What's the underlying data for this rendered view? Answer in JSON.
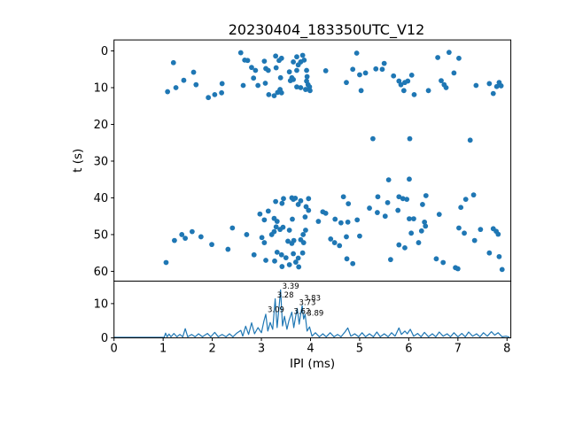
{
  "figure": {
    "title": "20230404_183350UTC_V12",
    "background": "#ffffff",
    "axis_color": "#000000",
    "accent_color": "#1f77b4"
  },
  "chart_data": [
    {
      "type": "scatter",
      "title": "20230404_183350UTC_V12",
      "xlabel": "IPI (ms)",
      "ylabel": "t (s)",
      "xlim": [
        0,
        8.08
      ],
      "ylim": [
        62.6,
        -3.0
      ],
      "y_inverted": true,
      "x_ticks": [
        0,
        1,
        2,
        3,
        4,
        5,
        6,
        7,
        8
      ],
      "x_tick_labels_visible": false,
      "y_ticks": [
        0,
        10,
        20,
        30,
        40,
        50,
        60
      ],
      "grid": false,
      "legend": "none",
      "marker_color": "#1f77b4",
      "points": [
        [
          1.09,
          11.1
        ],
        [
          1.21,
          3.2
        ],
        [
          1.26,
          10.0
        ],
        [
          1.42,
          8.0
        ],
        [
          1.62,
          5.8
        ],
        [
          1.67,
          9.2
        ],
        [
          1.92,
          12.7
        ],
        [
          2.05,
          11.9
        ],
        [
          2.19,
          11.4
        ],
        [
          2.2,
          8.9
        ],
        [
          2.58,
          0.5
        ],
        [
          2.63,
          9.4
        ],
        [
          2.66,
          2.5
        ],
        [
          2.72,
          2.6
        ],
        [
          2.8,
          4.5
        ],
        [
          2.84,
          7.4
        ],
        [
          2.88,
          5.3
        ],
        [
          2.93,
          9.4
        ],
        [
          3.06,
          2.8
        ],
        [
          3.08,
          8.8
        ],
        [
          3.09,
          4.8
        ],
        [
          3.14,
          5.3
        ],
        [
          3.15,
          11.9
        ],
        [
          3.26,
          12.2
        ],
        [
          3.29,
          1.4
        ],
        [
          3.3,
          4.6
        ],
        [
          3.33,
          11.3
        ],
        [
          3.36,
          2.6
        ],
        [
          3.38,
          10.5
        ],
        [
          3.39,
          7.3
        ],
        [
          3.41,
          2.0
        ],
        [
          3.41,
          11.4
        ],
        [
          3.57,
          5.7
        ],
        [
          3.59,
          8.1
        ],
        [
          3.62,
          7.3
        ],
        [
          3.65,
          3.0
        ],
        [
          3.65,
          7.8
        ],
        [
          3.72,
          1.6
        ],
        [
          3.72,
          5.3
        ],
        [
          3.72,
          9.8
        ],
        [
          3.75,
          3.8
        ],
        [
          3.8,
          3.0
        ],
        [
          3.8,
          10.0
        ],
        [
          3.84,
          1.2
        ],
        [
          3.87,
          2.5
        ],
        [
          3.9,
          10.5
        ],
        [
          3.92,
          5.3
        ],
        [
          3.92,
          8.2
        ],
        [
          3.93,
          7.0
        ],
        [
          3.95,
          9.2
        ],
        [
          3.98,
          9.8
        ],
        [
          3.99,
          10.8
        ],
        [
          4.31,
          5.4
        ],
        [
          4.73,
          8.6
        ],
        [
          4.86,
          5.0
        ],
        [
          4.94,
          0.6
        ],
        [
          5.0,
          6.5
        ],
        [
          5.03,
          10.8
        ],
        [
          5.12,
          6.0
        ],
        [
          5.33,
          4.9
        ],
        [
          5.46,
          5.0
        ],
        [
          5.5,
          3.4
        ],
        [
          5.69,
          6.8
        ],
        [
          5.8,
          8.2
        ],
        [
          5.84,
          9.2
        ],
        [
          5.9,
          10.8
        ],
        [
          5.92,
          8.6
        ],
        [
          5.98,
          8.2
        ],
        [
          6.06,
          6.6
        ],
        [
          6.11,
          11.9
        ],
        [
          6.4,
          10.8
        ],
        [
          6.59,
          1.8
        ],
        [
          6.66,
          8.1
        ],
        [
          6.72,
          9.2
        ],
        [
          6.76,
          10.0
        ],
        [
          6.82,
          0.4
        ],
        [
          6.92,
          6.0
        ],
        [
          7.02,
          2.0
        ],
        [
          7.37,
          9.4
        ],
        [
          7.64,
          8.9
        ],
        [
          7.72,
          11.6
        ],
        [
          7.79,
          9.7
        ],
        [
          7.84,
          8.6
        ],
        [
          7.88,
          9.5
        ],
        [
          5.27,
          23.9
        ],
        [
          6.02,
          23.9
        ],
        [
          7.25,
          24.3
        ],
        [
          5.59,
          35.1
        ],
        [
          6.01,
          34.9
        ],
        [
          1.06,
          57.6
        ],
        [
          1.23,
          51.6
        ],
        [
          1.38,
          50.0
        ],
        [
          1.45,
          51.0
        ],
        [
          1.59,
          49.2
        ],
        [
          1.77,
          50.6
        ],
        [
          1.99,
          52.7
        ],
        [
          2.32,
          54.0
        ],
        [
          2.41,
          48.2
        ],
        [
          2.7,
          50.0
        ],
        [
          2.85,
          55.5
        ],
        [
          2.97,
          44.4
        ],
        [
          3.01,
          50.8
        ],
        [
          3.06,
          46.0
        ],
        [
          3.06,
          52.2
        ],
        [
          3.09,
          57.0
        ],
        [
          3.14,
          43.6
        ],
        [
          3.21,
          50.0
        ],
        [
          3.26,
          45.6
        ],
        [
          3.26,
          49.2
        ],
        [
          3.27,
          57.2
        ],
        [
          3.29,
          41.0
        ],
        [
          3.3,
          47.9
        ],
        [
          3.32,
          46.4
        ],
        [
          3.32,
          54.8
        ],
        [
          3.38,
          48.6
        ],
        [
          3.41,
          55.5
        ],
        [
          3.42,
          41.5
        ],
        [
          3.42,
          58.7
        ],
        [
          3.44,
          48.0
        ],
        [
          3.45,
          40.2
        ],
        [
          3.5,
          56.3
        ],
        [
          3.54,
          51.8
        ],
        [
          3.57,
          48.8
        ],
        [
          3.57,
          58.2
        ],
        [
          3.62,
          40.0
        ],
        [
          3.62,
          52.4
        ],
        [
          3.63,
          45.8
        ],
        [
          3.65,
          40.4
        ],
        [
          3.65,
          55.2
        ],
        [
          3.66,
          51.6
        ],
        [
          3.69,
          40.1
        ],
        [
          3.7,
          57.5
        ],
        [
          3.75,
          41.8
        ],
        [
          3.75,
          56.4
        ],
        [
          3.76,
          58.8
        ],
        [
          3.8,
          40.8
        ],
        [
          3.8,
          51.4
        ],
        [
          3.84,
          55.0
        ],
        [
          3.85,
          50.0
        ],
        [
          3.86,
          52.2
        ],
        [
          3.89,
          45.2
        ],
        [
          3.9,
          48.8
        ],
        [
          3.91,
          42.4
        ],
        [
          3.96,
          40.2
        ],
        [
          3.96,
          43.4
        ],
        [
          4.16,
          46.4
        ],
        [
          4.25,
          43.8
        ],
        [
          4.31,
          44.2
        ],
        [
          4.41,
          51.2
        ],
        [
          4.49,
          52.2
        ],
        [
          4.5,
          45.8
        ],
        [
          4.59,
          53.0
        ],
        [
          4.62,
          46.8
        ],
        [
          4.67,
          39.7
        ],
        [
          4.73,
          50.6
        ],
        [
          4.74,
          56.6
        ],
        [
          4.76,
          46.6
        ],
        [
          4.77,
          41.6
        ],
        [
          4.86,
          57.9
        ],
        [
          4.95,
          46.0
        ],
        [
          5.0,
          50.4
        ],
        [
          5.2,
          42.8
        ],
        [
          5.36,
          44.0
        ],
        [
          5.37,
          39.7
        ],
        [
          5.52,
          45.0
        ],
        [
          5.57,
          41.3
        ],
        [
          5.63,
          56.8
        ],
        [
          5.78,
          43.4
        ],
        [
          5.8,
          39.7
        ],
        [
          5.8,
          52.8
        ],
        [
          5.88,
          40.2
        ],
        [
          5.92,
          53.6
        ],
        [
          5.96,
          40.4
        ],
        [
          6.01,
          45.7
        ],
        [
          6.05,
          49.6
        ],
        [
          6.1,
          45.7
        ],
        [
          6.2,
          52.2
        ],
        [
          6.26,
          49.0
        ],
        [
          6.28,
          41.8
        ],
        [
          6.32,
          46.6
        ],
        [
          6.34,
          47.7
        ],
        [
          6.35,
          39.4
        ],
        [
          6.56,
          56.6
        ],
        [
          6.62,
          44.5
        ],
        [
          6.7,
          57.6
        ],
        [
          6.95,
          59.0
        ],
        [
          7.0,
          59.3
        ],
        [
          7.02,
          48.2
        ],
        [
          7.06,
          42.6
        ],
        [
          7.13,
          49.6
        ],
        [
          7.16,
          40.4
        ],
        [
          7.32,
          39.2
        ],
        [
          7.34,
          51.6
        ],
        [
          7.46,
          48.6
        ],
        [
          7.64,
          55.0
        ],
        [
          7.72,
          48.4
        ],
        [
          7.78,
          49.1
        ],
        [
          7.82,
          49.9
        ],
        [
          7.84,
          56.0
        ],
        [
          7.9,
          59.5
        ]
      ]
    },
    {
      "type": "line",
      "role": "ipi-count-histogram",
      "xlabel": "IPI (ms)",
      "ylabel": "",
      "xlim": [
        0,
        8.08
      ],
      "ylim": [
        0,
        16.4
      ],
      "x_ticks": [
        0,
        1,
        2,
        3,
        4,
        5,
        6,
        7,
        8
      ],
      "y_ticks": [
        0,
        10
      ],
      "grid": false,
      "line_color": "#1f77b4",
      "annotations": [
        {
          "label": "3.39",
          "x": 3.39,
          "y": 15.2
        },
        {
          "label": "3.28",
          "x": 3.28,
          "y": 12.5
        },
        {
          "label": "3.09",
          "x": 3.09,
          "y": 8.3
        },
        {
          "label": "3.83",
          "x": 3.83,
          "y": 11.7
        },
        {
          "label": "3.73",
          "x": 3.73,
          "y": 10.4
        },
        {
          "label": "3.62",
          "x": 3.62,
          "y": 7.8
        },
        {
          "label": "3.89",
          "x": 3.89,
          "y": 7.3
        }
      ],
      "points": [
        [
          0,
          0.15
        ],
        [
          1.02,
          0.15
        ],
        [
          1.05,
          1.4
        ],
        [
          1.08,
          0.3
        ],
        [
          1.12,
          1.1
        ],
        [
          1.16,
          0.3
        ],
        [
          1.22,
          1.3
        ],
        [
          1.28,
          0.3
        ],
        [
          1.34,
          1.0
        ],
        [
          1.4,
          0.3
        ],
        [
          1.45,
          2.7
        ],
        [
          1.5,
          0.3
        ],
        [
          1.58,
          1.0
        ],
        [
          1.65,
          0.3
        ],
        [
          1.72,
          1.2
        ],
        [
          1.8,
          0.3
        ],
        [
          1.9,
          1.3
        ],
        [
          1.97,
          0.3
        ],
        [
          2.05,
          1.6
        ],
        [
          2.12,
          0.3
        ],
        [
          2.2,
          1.0
        ],
        [
          2.28,
          0.3
        ],
        [
          2.35,
          1.2
        ],
        [
          2.42,
          0.3
        ],
        [
          2.5,
          1.4
        ],
        [
          2.58,
          2.2
        ],
        [
          2.62,
          0.5
        ],
        [
          2.68,
          3.4
        ],
        [
          2.74,
          1.0
        ],
        [
          2.8,
          4.4
        ],
        [
          2.86,
          1.2
        ],
        [
          2.93,
          3.0
        ],
        [
          3.0,
          1.5
        ],
        [
          3.05,
          4.8
        ],
        [
          3.09,
          6.9
        ],
        [
          3.13,
          2.0
        ],
        [
          3.18,
          4.5
        ],
        [
          3.23,
          2.5
        ],
        [
          3.28,
          11.4
        ],
        [
          3.32,
          3.0
        ],
        [
          3.36,
          9.0
        ],
        [
          3.39,
          14.0
        ],
        [
          3.43,
          3.5
        ],
        [
          3.47,
          6.3
        ],
        [
          3.52,
          2.5
        ],
        [
          3.56,
          5.0
        ],
        [
          3.62,
          7.5
        ],
        [
          3.66,
          3.0
        ],
        [
          3.7,
          6.5
        ],
        [
          3.73,
          8.6
        ],
        [
          3.77,
          4.0
        ],
        [
          3.8,
          7.0
        ],
        [
          3.83,
          9.4
        ],
        [
          3.86,
          5.5
        ],
        [
          3.89,
          6.9
        ],
        [
          3.93,
          2.0
        ],
        [
          3.98,
          3.2
        ],
        [
          4.03,
          0.5
        ],
        [
          4.1,
          1.5
        ],
        [
          4.18,
          0.3
        ],
        [
          4.25,
          1.2
        ],
        [
          4.32,
          0.3
        ],
        [
          4.4,
          1.5
        ],
        [
          4.48,
          0.3
        ],
        [
          4.55,
          1.0
        ],
        [
          4.62,
          0.3
        ],
        [
          4.7,
          1.7
        ],
        [
          4.76,
          2.9
        ],
        [
          4.82,
          0.5
        ],
        [
          4.9,
          1.2
        ],
        [
          4.98,
          0.3
        ],
        [
          5.05,
          1.5
        ],
        [
          5.12,
          0.3
        ],
        [
          5.2,
          1.2
        ],
        [
          5.28,
          0.3
        ],
        [
          5.35,
          1.7
        ],
        [
          5.42,
          0.3
        ],
        [
          5.5,
          1.2
        ],
        [
          5.58,
          0.3
        ],
        [
          5.65,
          1.5
        ],
        [
          5.72,
          0.5
        ],
        [
          5.8,
          2.9
        ],
        [
          5.85,
          1.0
        ],
        [
          5.92,
          2.0
        ],
        [
          5.97,
          1.2
        ],
        [
          6.03,
          2.5
        ],
        [
          6.1,
          0.5
        ],
        [
          6.18,
          1.3
        ],
        [
          6.25,
          0.3
        ],
        [
          6.32,
          1.6
        ],
        [
          6.4,
          0.3
        ],
        [
          6.48,
          1.2
        ],
        [
          6.55,
          0.3
        ],
        [
          6.62,
          1.7
        ],
        [
          6.7,
          0.5
        ],
        [
          6.78,
          1.2
        ],
        [
          6.85,
          0.3
        ],
        [
          6.92,
          1.5
        ],
        [
          7.0,
          0.3
        ],
        [
          7.08,
          1.3
        ],
        [
          7.15,
          0.3
        ],
        [
          7.22,
          1.7
        ],
        [
          7.3,
          0.5
        ],
        [
          7.38,
          1.2
        ],
        [
          7.45,
          0.3
        ],
        [
          7.52,
          1.5
        ],
        [
          7.6,
          0.5
        ],
        [
          7.68,
          1.8
        ],
        [
          7.75,
          0.8
        ],
        [
          7.82,
          1.5
        ],
        [
          7.9,
          0.3
        ],
        [
          7.98,
          0.5
        ],
        [
          8.05,
          0.2
        ]
      ]
    }
  ]
}
